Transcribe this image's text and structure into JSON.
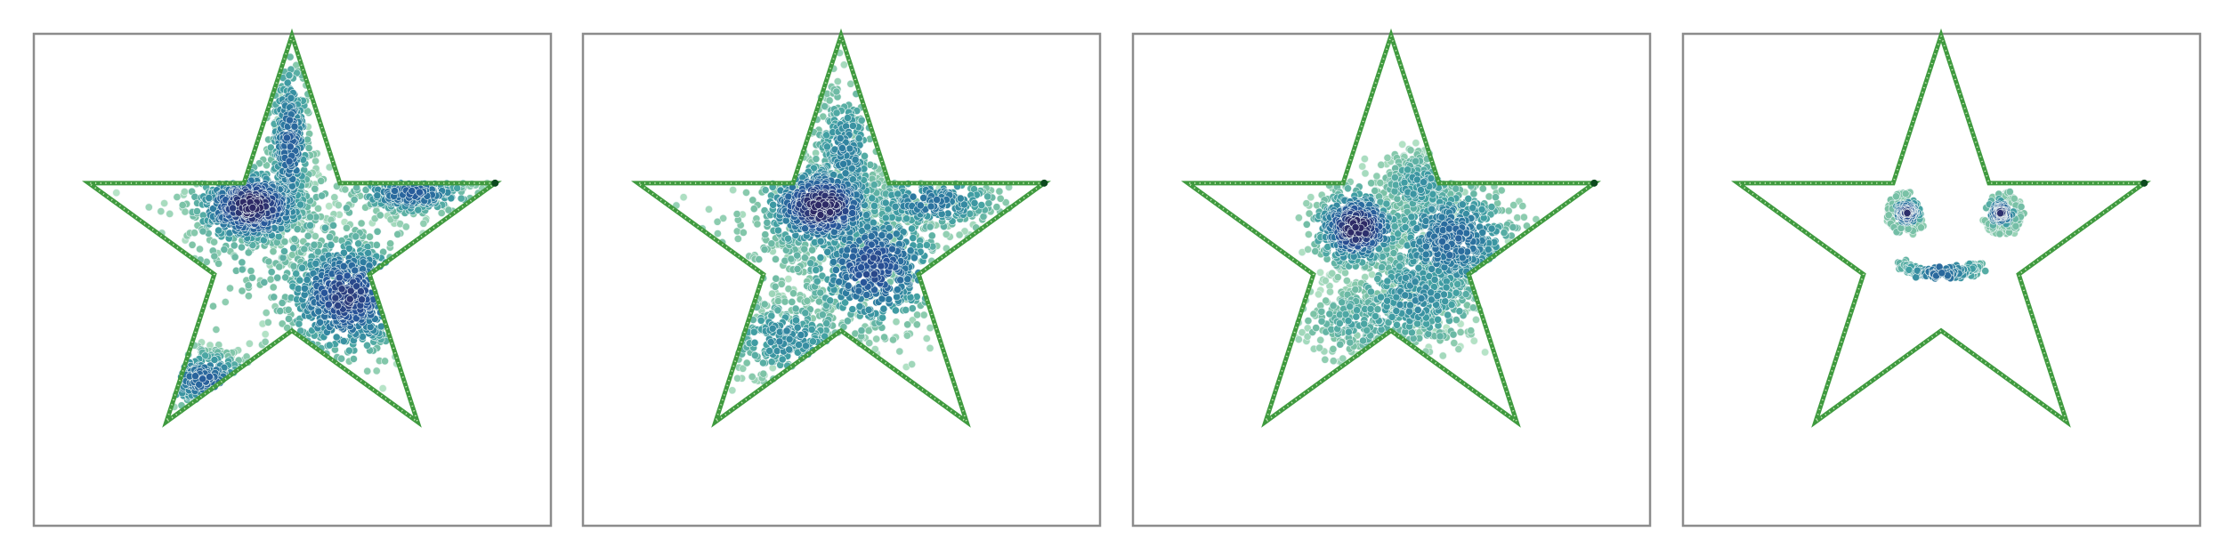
{
  "chart_data": [
    {
      "type": "scatter",
      "title": "",
      "xlabel": "",
      "ylabel": "",
      "grid": false,
      "axis_ticks": false,
      "boundary": {
        "shape": "five-pointed star",
        "color": "#3f9a3f",
        "vertices": [
          [
            0,
            1
          ],
          [
            0.2245,
            0.309
          ],
          [
            0.9511,
            0.309
          ],
          [
            0.3633,
            -0.118
          ],
          [
            0.5878,
            -0.809
          ],
          [
            0,
            -0.382
          ],
          [
            -0.5878,
            -0.809
          ],
          [
            -0.3633,
            -0.118
          ],
          [
            -0.9511,
            0.309
          ],
          [
            -0.2245,
            0.309
          ]
        ]
      },
      "colormap": [
        "#b7e4c7",
        "#7cc3a6",
        "#41a0a3",
        "#2c7aa0",
        "#27549a",
        "#2e2a66"
      ],
      "clusters": [
        {
          "cx": -0.19,
          "cy": 0.2,
          "sx": 0.13,
          "sy": 0.09,
          "n": 700,
          "peak": 1.0
        },
        {
          "cx": -0.01,
          "cy": 0.49,
          "sx": 0.05,
          "sy": 0.2,
          "n": 320,
          "peak": 0.72
        },
        {
          "cx": 0.26,
          "cy": -0.22,
          "sx": 0.15,
          "sy": 0.14,
          "n": 600,
          "peak": 0.88
        },
        {
          "cx": 0.56,
          "cy": 0.26,
          "sx": 0.14,
          "sy": 0.05,
          "n": 260,
          "peak": 0.72
        },
        {
          "cx": -0.41,
          "cy": -0.61,
          "sx": 0.11,
          "sy": 0.07,
          "n": 260,
          "peak": 0.7
        },
        {
          "cx": 0.02,
          "cy": 0.05,
          "sx": 0.35,
          "sy": 0.28,
          "n": 240,
          "peak": 0.3
        }
      ]
    },
    {
      "type": "scatter",
      "title": "",
      "xlabel": "",
      "ylabel": "",
      "grid": false,
      "axis_ticks": false,
      "boundary": {
        "shape": "five-pointed star",
        "color": "#3f9a3f"
      },
      "colormap": [
        "#b7e4c7",
        "#7cc3a6",
        "#41a0a3",
        "#2c7aa0",
        "#27549a",
        "#2e2a66"
      ],
      "clusters": [
        {
          "cx": -0.09,
          "cy": 0.2,
          "sx": 0.14,
          "sy": 0.1,
          "n": 650,
          "peak": 1.0
        },
        {
          "cx": 0.02,
          "cy": 0.43,
          "sx": 0.08,
          "sy": 0.18,
          "n": 300,
          "peak": 0.55
        },
        {
          "cx": 0.15,
          "cy": -0.08,
          "sx": 0.16,
          "sy": 0.15,
          "n": 520,
          "peak": 0.82
        },
        {
          "cx": 0.42,
          "cy": 0.22,
          "sx": 0.17,
          "sy": 0.07,
          "n": 240,
          "peak": 0.62
        },
        {
          "cx": -0.25,
          "cy": -0.42,
          "sx": 0.16,
          "sy": 0.1,
          "n": 260,
          "peak": 0.5
        },
        {
          "cx": -0.05,
          "cy": 0.05,
          "sx": 0.38,
          "sy": 0.3,
          "n": 280,
          "peak": 0.25
        }
      ]
    },
    {
      "type": "scatter",
      "title": "",
      "xlabel": "",
      "ylabel": "",
      "grid": false,
      "axis_ticks": false,
      "boundary": {
        "shape": "five-pointed star",
        "color": "#3f9a3f"
      },
      "colormap": [
        "#b7e4c7",
        "#7cc3a6",
        "#41a0a3",
        "#2c7aa0",
        "#27549a",
        "#2e2a66"
      ],
      "clusters": [
        {
          "cx": -0.16,
          "cy": 0.1,
          "sx": 0.1,
          "sy": 0.09,
          "n": 520,
          "peak": 1.0
        },
        {
          "cx": 0.28,
          "cy": 0.04,
          "sx": 0.16,
          "sy": 0.14,
          "n": 600,
          "peak": 0.68
        },
        {
          "cx": 0.13,
          "cy": 0.3,
          "sx": 0.1,
          "sy": 0.08,
          "n": 260,
          "peak": 0.45
        },
        {
          "cx": 0.12,
          "cy": -0.22,
          "sx": 0.17,
          "sy": 0.13,
          "n": 420,
          "peak": 0.5
        },
        {
          "cx": -0.14,
          "cy": -0.33,
          "sx": 0.16,
          "sy": 0.1,
          "n": 260,
          "peak": 0.35
        }
      ]
    },
    {
      "type": "scatter",
      "title": "",
      "xlabel": "",
      "ylabel": "",
      "grid": false,
      "axis_ticks": false,
      "boundary": {
        "shape": "five-pointed star",
        "color": "#3f9a3f"
      },
      "colormap": [
        "#b7e4c7",
        "#7cc3a6",
        "#41a0a3",
        "#2c7aa0",
        "#27549a",
        "#2e2a66"
      ],
      "features": [
        {
          "name": "left-eye",
          "cx": -0.16,
          "cy": 0.17,
          "r": 0.055,
          "ring_r": 0.085,
          "n": 220
        },
        {
          "name": "right-eye",
          "cx": 0.28,
          "cy": 0.17,
          "r": 0.055,
          "ring_r": 0.085,
          "n": 220
        },
        {
          "name": "smile",
          "cx": 0.0,
          "cy": -0.06,
          "rx": 0.19,
          "ry": 0.055,
          "n": 230
        }
      ]
    }
  ]
}
